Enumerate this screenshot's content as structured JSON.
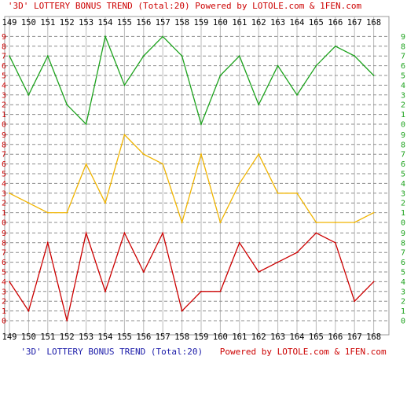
{
  "chart_data": {
    "type": "line",
    "title_top": "'3D' LOTTERY BONUS TREND (Total:20)  Powered by LOTOLE.com & 1FEN.com",
    "title_bottom_part1": "'3D' LOTTERY BONUS TREND (Total:20)",
    "title_bottom_part2": "Powered by LOTOLE.com & 1FEN.com",
    "x": [
      "149",
      "150",
      "151",
      "152",
      "153",
      "154",
      "155",
      "156",
      "157",
      "158",
      "159",
      "160",
      "161",
      "162",
      "163",
      "164",
      "165",
      "166",
      "167",
      "168"
    ],
    "y_ticks": [
      "0",
      "1",
      "2",
      "3",
      "4",
      "5",
      "6",
      "7",
      "8",
      "9"
    ],
    "ylim": [
      0,
      9
    ],
    "grid": true,
    "series": [
      {
        "color": "#1ca21c",
        "values": [
          7,
          3,
          7,
          2,
          0,
          9,
          4,
          7,
          9,
          7,
          0,
          5,
          7,
          2,
          6,
          3,
          6,
          8,
          7,
          5
        ]
      },
      {
        "color": "#f0b400",
        "values": [
          3,
          2,
          1,
          1,
          6,
          2,
          9,
          7,
          6,
          0,
          7,
          0,
          4,
          7,
          3,
          3,
          0,
          0,
          0,
          1
        ]
      },
      {
        "color": "#cc0000",
        "values": [
          4,
          1,
          8,
          0,
          9,
          3,
          9,
          5,
          9,
          1,
          3,
          3,
          8,
          5,
          6,
          7,
          9,
          8,
          2,
          4
        ]
      }
    ],
    "axis_label_color_left": "#cc0000",
    "axis_label_color_right": "#1ca21c"
  }
}
